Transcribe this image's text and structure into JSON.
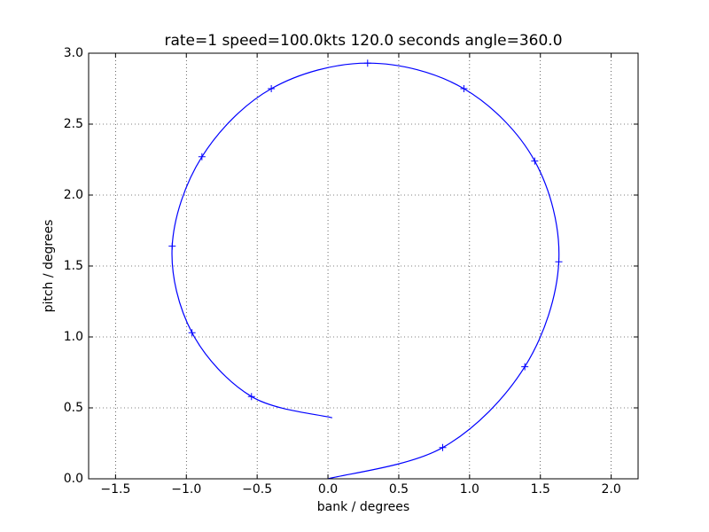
{
  "chart_data": {
    "type": "line",
    "title": "rate=1   speed=100.0kts   120.0 seconds   angle=360.0",
    "x_label": "bank / degrees",
    "y_label": "pitch / degrees",
    "xlim": [
      -1.69,
      2.19
    ],
    "ylim": [
      0,
      3
    ],
    "xticks": [
      {
        "value": -1.5,
        "label": "−1.5"
      },
      {
        "value": -1,
        "label": "−1.0"
      },
      {
        "value": -0.5,
        "label": "−0.5"
      },
      {
        "value": 0,
        "label": "0.0"
      },
      0.5,
      {
        "value": 1,
        "label": "1.0"
      },
      1.5,
      {
        "value": 2,
        "label": "2.0"
      }
    ],
    "yticks": [
      {
        "value": 0,
        "label": "0.0"
      },
      0.5,
      {
        "value": 1,
        "label": "1.0"
      },
      1.5,
      {
        "value": 2,
        "label": "2.0"
      },
      2.5,
      {
        "value": 3,
        "label": "3.0"
      }
    ],
    "grid": true,
    "series": [
      {
        "style": "line",
        "color": "#0000ff",
        "x": [
          0,
          0.81,
          1.39,
          1.63,
          1.46,
          0.96,
          0.28,
          -0.4,
          -0.89,
          -1.1,
          -0.96,
          -0.54,
          0.03
        ],
        "y": [
          0,
          0.22,
          0.79,
          1.53,
          2.24,
          2.75,
          2.93,
          2.75,
          2.27,
          1.64,
          1.03,
          0.58,
          0.43
        ]
      },
      {
        "style": "marker",
        "color": "#0000ff",
        "x": [
          0.81,
          1.39,
          1.63,
          1.46,
          0.96,
          0.28,
          -0.4,
          -0.89,
          -1.1,
          -0.96,
          -0.54
        ],
        "y": [
          0.22,
          0.79,
          1.53,
          2.24,
          2.75,
          2.93,
          2.75,
          2.27,
          1.64,
          1.03,
          0.58
        ]
      }
    ]
  }
}
